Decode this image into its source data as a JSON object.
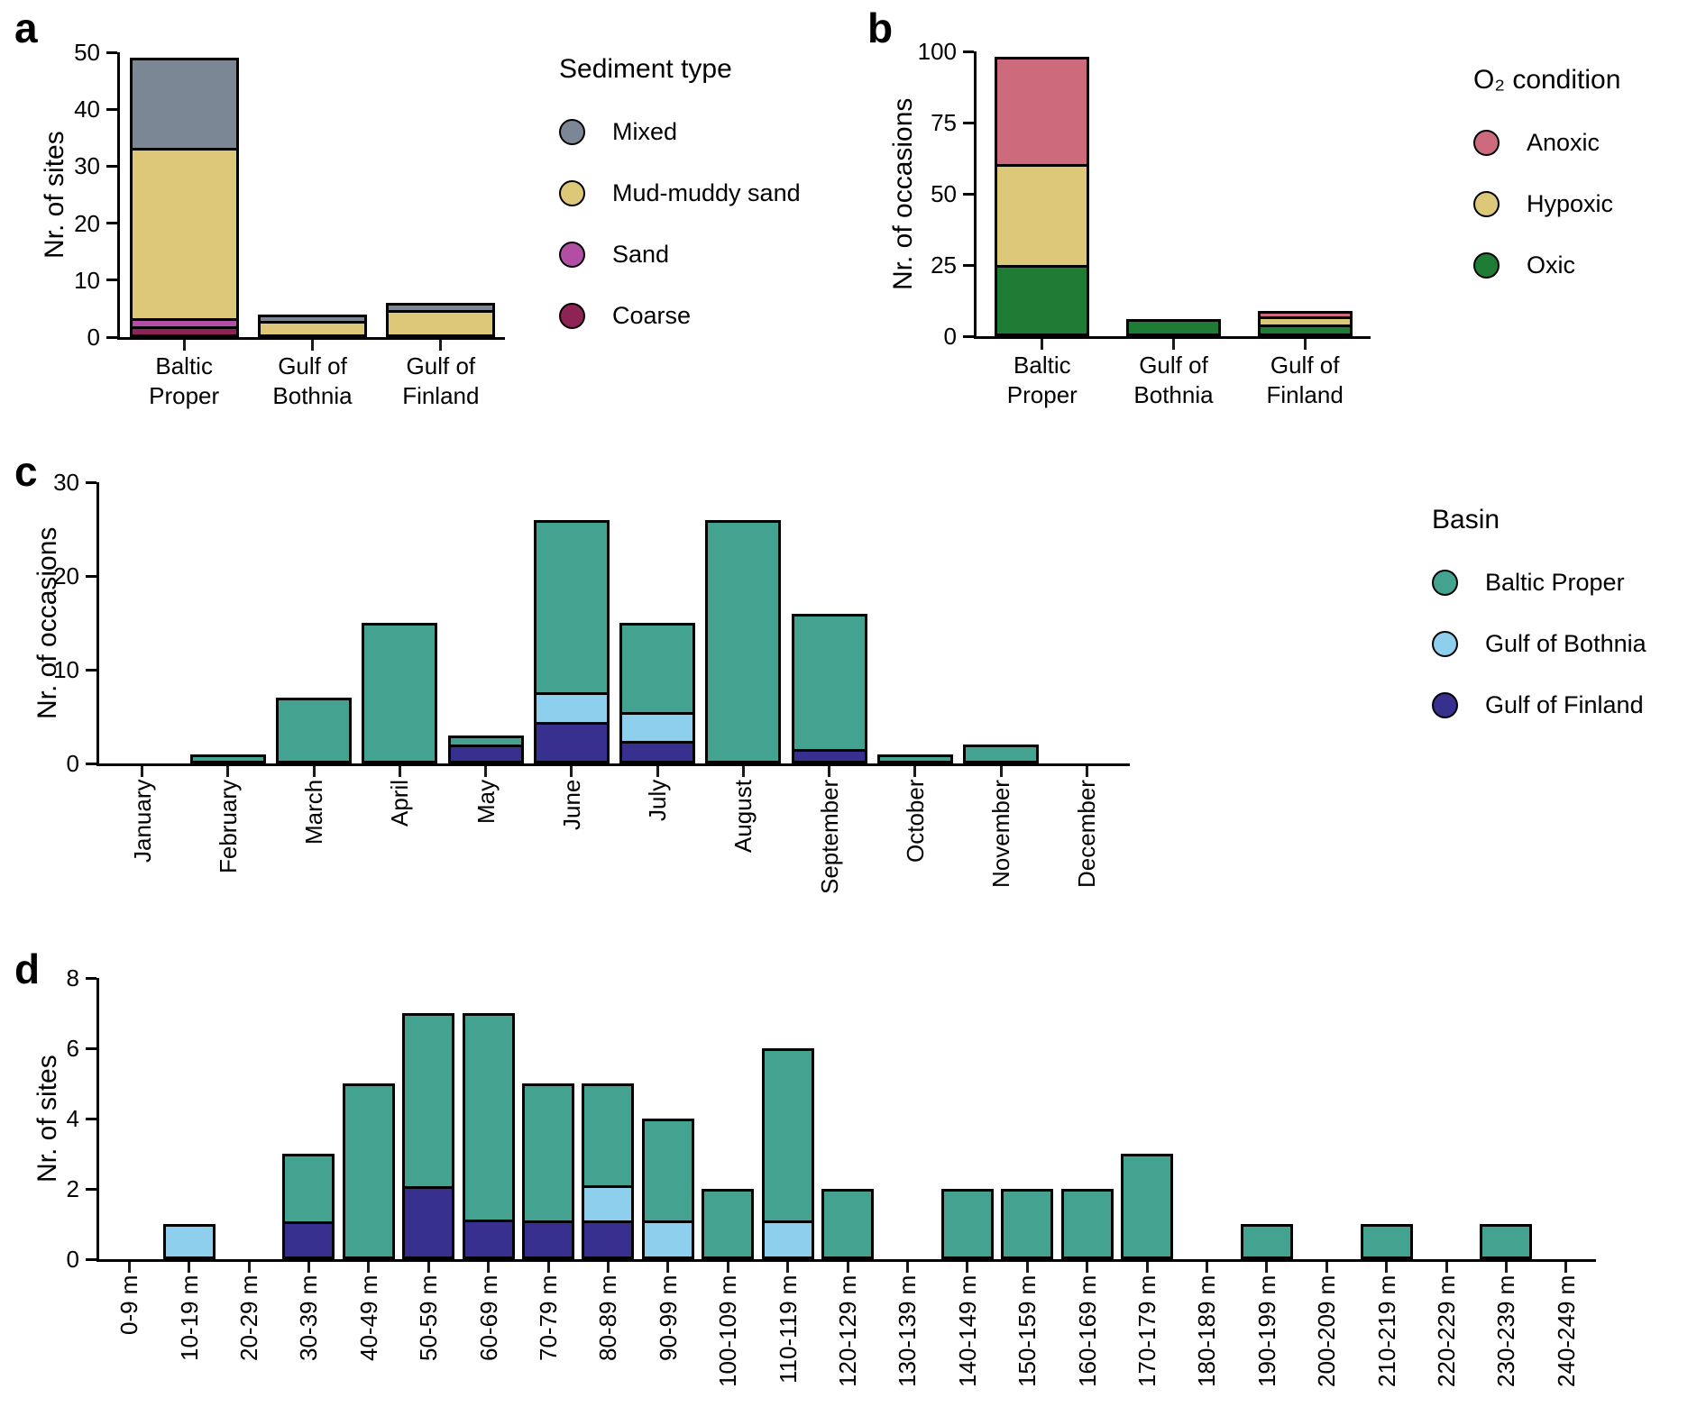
{
  "figure": {
    "background": "#ffffff",
    "panel_letters": [
      "a",
      "b",
      "c",
      "d"
    ]
  },
  "chart_data": [
    {
      "panel_id": "a",
      "panel_letter": "a",
      "type": "bar",
      "stacked": true,
      "grid": false,
      "ylabel": "Nr. of sites",
      "ylim": [
        0,
        50
      ],
      "yticks": [
        0,
        10,
        20,
        30,
        40,
        50
      ],
      "categories": [
        "Baltic Proper",
        "Gulf of Bothnia",
        "Gulf of Finland"
      ],
      "legend_title": "Sediment type",
      "legend_position": "right",
      "series": [
        {
          "name": "Mixed",
          "color": "#7B8795",
          "values": [
            16,
            1,
            1
          ]
        },
        {
          "name": "Mud-muddy sand",
          "color": "#DCC878",
          "values": [
            31,
            3,
            5
          ]
        },
        {
          "name": "Sand",
          "color": "#B24FA5",
          "values": [
            1,
            0,
            0
          ]
        },
        {
          "name": "Coarse",
          "color": "#8E2355",
          "values": [
            1,
            0,
            0
          ]
        }
      ]
    },
    {
      "panel_id": "b",
      "panel_letter": "b",
      "type": "bar",
      "stacked": true,
      "grid": false,
      "ylabel": "Nr. of occasions",
      "ylim": [
        0,
        100
      ],
      "yticks": [
        0,
        25,
        50,
        75,
        100
      ],
      "categories": [
        "Baltic Proper",
        "Gulf of Bothnia",
        "Gulf of Finland"
      ],
      "legend_title": "O₂ condition",
      "legend_position": "right",
      "series": [
        {
          "name": "Anoxic",
          "color": "#CD6B7D",
          "values": [
            38,
            0,
            2
          ]
        },
        {
          "name": "Hypoxic",
          "color": "#DCC878",
          "values": [
            36,
            0,
            3
          ]
        },
        {
          "name": "Oxic",
          "color": "#1E7C35",
          "values": [
            24,
            6,
            4
          ]
        }
      ]
    },
    {
      "panel_id": "c",
      "panel_letter": "c",
      "type": "bar",
      "stacked": true,
      "grid": false,
      "ylabel": "Nr. of occasions",
      "ylim": [
        0,
        30
      ],
      "yticks": [
        0,
        10,
        20,
        30
      ],
      "categories": [
        "January",
        "February",
        "March",
        "April",
        "May",
        "June",
        "July",
        "August",
        "September",
        "October",
        "November",
        "December"
      ],
      "legend_title": "Basin",
      "legend_position": "right",
      "series": [
        {
          "name": "Baltic Proper",
          "color": "#44A390",
          "values": [
            0,
            1,
            7,
            15,
            1,
            19,
            10,
            26,
            15,
            1,
            2,
            0
          ]
        },
        {
          "name": "Gulf of Bothnia",
          "color": "#8DCFEC",
          "values": [
            0,
            0,
            0,
            0,
            0,
            3,
            3,
            0,
            0,
            0,
            0,
            0
          ]
        },
        {
          "name": "Gulf of Finland",
          "color": "#37308F",
          "values": [
            0,
            0,
            0,
            0,
            2,
            4,
            2,
            0,
            1,
            0,
            0,
            0
          ]
        }
      ]
    },
    {
      "panel_id": "d",
      "panel_letter": "d",
      "type": "bar",
      "stacked": true,
      "grid": false,
      "ylabel": "Nr. of sites",
      "ylim": [
        0,
        8
      ],
      "yticks": [
        0,
        2,
        4,
        6,
        8
      ],
      "categories": [
        "0-9 m",
        "10-19 m",
        "20-29 m",
        "30-39 m",
        "40-49 m",
        "50-59 m",
        "60-69 m",
        "70-79 m",
        "80-89 m",
        "90-99 m",
        "100-109 m",
        "110-119 m",
        "120-129 m",
        "130-139 m",
        "140-149 m",
        "150-159 m",
        "160-169 m",
        "170-179 m",
        "180-189 m",
        "190-199 m",
        "200-209 m",
        "210-219 m",
        "220-229 m",
        "230-239 m",
        "240-249 m"
      ],
      "legend_title": null,
      "legend_position": "none",
      "series": [
        {
          "name": "Baltic Proper",
          "color": "#44A390",
          "values": [
            0,
            0,
            0,
            2,
            5,
            5,
            6,
            4,
            3,
            3,
            2,
            5,
            2,
            0,
            2,
            2,
            2,
            3,
            0,
            1,
            0,
            1,
            0,
            1,
            0
          ]
        },
        {
          "name": "Gulf of Bothnia",
          "color": "#8DCFEC",
          "values": [
            0,
            1,
            0,
            0,
            0,
            0,
            0,
            0,
            1,
            1,
            0,
            1,
            0,
            0,
            0,
            0,
            0,
            0,
            0,
            0,
            0,
            0,
            0,
            0,
            0
          ]
        },
        {
          "name": "Gulf of Finland",
          "color": "#37308F",
          "values": [
            0,
            0,
            0,
            1,
            0,
            2,
            1,
            1,
            1,
            0,
            0,
            0,
            0,
            0,
            0,
            0,
            0,
            0,
            0,
            0,
            0,
            0,
            0,
            0,
            0
          ]
        }
      ]
    }
  ]
}
